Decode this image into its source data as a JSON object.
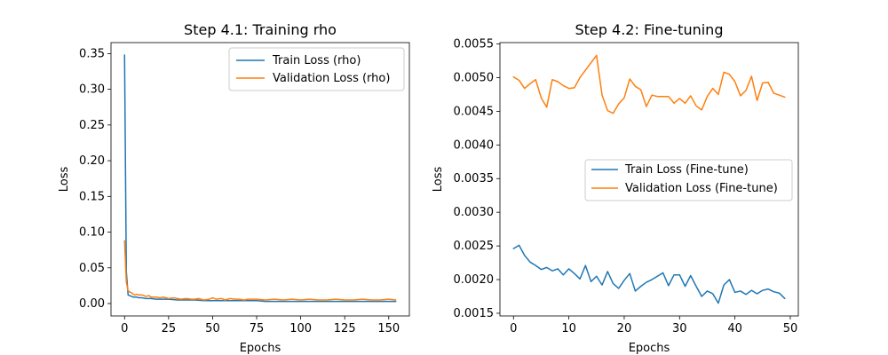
{
  "chart_data": [
    {
      "type": "line",
      "title": "Step 4.1: Training rho",
      "xlabel": "Epochs",
      "ylabel": "Loss",
      "xlim": [
        -7.7,
        161.7
      ],
      "ylim": [
        -0.0174,
        0.3654
      ],
      "xticks": [
        0,
        25,
        50,
        75,
        100,
        125,
        150
      ],
      "xtick_labels": [
        "0",
        "25",
        "50",
        "75",
        "100",
        "125",
        "150"
      ],
      "yticks": [
        0.0,
        0.05,
        0.1,
        0.15,
        0.2,
        0.25,
        0.3,
        0.35
      ],
      "ytick_labels": [
        "0.00",
        "0.05",
        "0.10",
        "0.15",
        "0.20",
        "0.25",
        "0.30",
        "0.35"
      ],
      "grid": false,
      "legend_position": "upper right",
      "series": [
        {
          "name": "Train Loss (rho)",
          "color": "#1f77b4",
          "x": [
            0,
            1,
            2,
            3,
            4,
            5,
            6,
            7,
            8,
            9,
            10,
            12,
            15,
            18,
            20,
            25,
            30,
            35,
            40,
            45,
            50,
            55,
            60,
            65,
            70,
            75,
            80,
            85,
            90,
            95,
            100,
            105,
            110,
            115,
            120,
            125,
            130,
            135,
            140,
            145,
            150,
            154
          ],
          "y": [
            0.348,
            0.045,
            0.012,
            0.011,
            0.01,
            0.009,
            0.009,
            0.009,
            0.008,
            0.008,
            0.008,
            0.007,
            0.007,
            0.006,
            0.006,
            0.006,
            0.005,
            0.005,
            0.005,
            0.004,
            0.004,
            0.004,
            0.004,
            0.004,
            0.004,
            0.004,
            0.003,
            0.003,
            0.003,
            0.003,
            0.003,
            0.003,
            0.003,
            0.003,
            0.003,
            0.003,
            0.003,
            0.003,
            0.003,
            0.003,
            0.003,
            0.003
          ]
        },
        {
          "name": "Validation Loss (rho)",
          "color": "#ff7f0e",
          "x": [
            0,
            1,
            2,
            3,
            4,
            5,
            6,
            7,
            8,
            10,
            12,
            14,
            15,
            18,
            20,
            22,
            25,
            28,
            30,
            32,
            35,
            38,
            40,
            42,
            45,
            48,
            50,
            52,
            55,
            57,
            60,
            62,
            65,
            68,
            70,
            75,
            80,
            85,
            90,
            95,
            100,
            105,
            110,
            115,
            120,
            125,
            130,
            135,
            140,
            145,
            150,
            154
          ],
          "y": [
            0.088,
            0.03,
            0.018,
            0.016,
            0.015,
            0.013,
            0.012,
            0.013,
            0.012,
            0.012,
            0.01,
            0.011,
            0.009,
            0.009,
            0.008,
            0.009,
            0.007,
            0.008,
            0.007,
            0.006,
            0.007,
            0.006,
            0.006,
            0.007,
            0.005,
            0.006,
            0.008,
            0.006,
            0.007,
            0.005,
            0.007,
            0.006,
            0.006,
            0.005,
            0.006,
            0.006,
            0.005,
            0.006,
            0.005,
            0.006,
            0.005,
            0.006,
            0.005,
            0.005,
            0.006,
            0.005,
            0.005,
            0.006,
            0.005,
            0.005,
            0.006,
            0.005
          ]
        }
      ]
    },
    {
      "type": "line",
      "title": "Step 4.2: Fine-tuning",
      "xlabel": "Epochs",
      "ylabel": "Loss",
      "xlim": [
        -2.45,
        51.45
      ],
      "ylim": [
        0.00146,
        0.00552
      ],
      "xticks": [
        0,
        10,
        20,
        30,
        40,
        50
      ],
      "xtick_labels": [
        "0",
        "10",
        "20",
        "30",
        "40",
        "50"
      ],
      "yticks": [
        0.0015,
        0.002,
        0.0025,
        0.003,
        0.0035,
        0.004,
        0.0045,
        0.005,
        0.0055
      ],
      "ytick_labels": [
        "0.0015",
        "0.0020",
        "0.0025",
        "0.0030",
        "0.0035",
        "0.0040",
        "0.0045",
        "0.0050",
        "0.0055"
      ],
      "grid": false,
      "legend_position": "center right",
      "series": [
        {
          "name": "Train Loss (Fine-tune)",
          "color": "#1f77b4",
          "x": [
            0,
            1,
            2,
            3,
            4,
            5,
            6,
            7,
            8,
            9,
            10,
            11,
            12,
            13,
            14,
            15,
            16,
            17,
            18,
            19,
            20,
            21,
            22,
            23,
            24,
            25,
            26,
            27,
            28,
            29,
            30,
            31,
            32,
            33,
            34,
            35,
            36,
            37,
            38,
            39,
            40,
            41,
            42,
            43,
            44,
            45,
            46,
            47,
            48,
            49
          ],
          "y": [
            0.00246,
            0.00251,
            0.00236,
            0.00226,
            0.00221,
            0.00215,
            0.00218,
            0.00213,
            0.00216,
            0.00207,
            0.00216,
            0.00209,
            0.00201,
            0.00221,
            0.00197,
            0.00205,
            0.00192,
            0.00212,
            0.00194,
            0.00187,
            0.00199,
            0.00209,
            0.00183,
            0.0019,
            0.00196,
            0.002,
            0.00205,
            0.0021,
            0.00191,
            0.00207,
            0.00207,
            0.0019,
            0.00206,
            0.0019,
            0.00175,
            0.00183,
            0.00179,
            0.00165,
            0.00192,
            0.002,
            0.00181,
            0.00183,
            0.00178,
            0.00184,
            0.00179,
            0.00184,
            0.00186,
            0.00182,
            0.0018,
            0.00172
          ]
        },
        {
          "name": "Validation Loss (Fine-tune)",
          "color": "#ff7f0e",
          "x": [
            0,
            1,
            2,
            3,
            4,
            5,
            6,
            7,
            8,
            9,
            10,
            11,
            12,
            13,
            14,
            15,
            16,
            17,
            18,
            19,
            20,
            21,
            22,
            23,
            24,
            25,
            26,
            27,
            28,
            29,
            30,
            31,
            32,
            33,
            34,
            35,
            36,
            37,
            38,
            39,
            40,
            41,
            42,
            43,
            44,
            45,
            46,
            47,
            48,
            49
          ],
          "y": [
            0.00501,
            0.00496,
            0.00484,
            0.00491,
            0.00497,
            0.0047,
            0.00456,
            0.00497,
            0.00494,
            0.00488,
            0.00484,
            0.00485,
            0.005,
            0.00511,
            0.00522,
            0.00533,
            0.00474,
            0.00451,
            0.00447,
            0.00461,
            0.0047,
            0.00498,
            0.00487,
            0.00482,
            0.00457,
            0.00474,
            0.00472,
            0.00472,
            0.00472,
            0.00462,
            0.00469,
            0.00462,
            0.00473,
            0.00458,
            0.00452,
            0.00472,
            0.00484,
            0.00475,
            0.00508,
            0.00505,
            0.00494,
            0.00473,
            0.00481,
            0.00502,
            0.00466,
            0.00492,
            0.00493,
            0.00477,
            0.00474,
            0.00471
          ]
        }
      ]
    }
  ]
}
